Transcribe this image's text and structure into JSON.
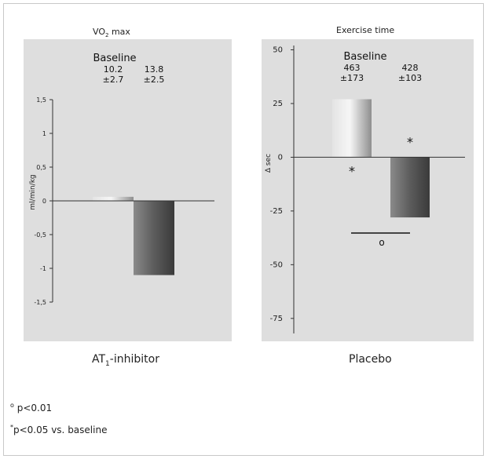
{
  "charts": [
    {
      "type": "bar",
      "title": "VO",
      "title_sub": "2",
      "title_tail": " max",
      "ylabel": "ml/min/kg",
      "ylim": [
        -1.5,
        1.5
      ],
      "yticks": [
        "1,5",
        "1",
        "0,5",
        "0",
        "-0,5",
        "-1",
        "-1,5"
      ],
      "ytick_values": [
        1.5,
        1,
        0.5,
        0,
        -0.5,
        -1,
        -1.5
      ],
      "baseline_label": "Baseline",
      "baseline_values": [
        {
          "mean": "10.2",
          "sd": "±2.7"
        },
        {
          "mean": "13.8",
          "sd": "±2.5"
        }
      ],
      "series": [
        {
          "group": "AT1-inhibitor",
          "value": 0.06
        },
        {
          "group": "Placebo",
          "value": -1.1
        }
      ],
      "grid": false
    },
    {
      "type": "bar",
      "title": "Exercise time",
      "ylabel": "Δ sec",
      "ylim": [
        -82,
        52
      ],
      "yticks": [
        "50",
        "25",
        "0",
        "-25",
        "-50",
        "-75"
      ],
      "ytick_values": [
        50,
        25,
        0,
        -25,
        -50,
        -75
      ],
      "baseline_label": "Baseline",
      "baseline_values": [
        {
          "mean": "463",
          "sd": "±173"
        },
        {
          "mean": "428",
          "sd": "±103"
        }
      ],
      "series": [
        {
          "group": "AT1-inhibitor",
          "value": 27
        },
        {
          "group": "Placebo",
          "value": -28
        }
      ],
      "asterisk": "*",
      "significance_mark": "o",
      "grid": false
    }
  ],
  "group_labels": {
    "left_main": "AT",
    "left_sub": "1",
    "left_tail": "-inhibitor",
    "right": "Placebo"
  },
  "footnotes": {
    "f1_mark": "o",
    "f1_text": " p<0.01",
    "f2_mark": "*",
    "f2_text": "p<0.05 vs. baseline"
  },
  "colors": {
    "panel_bg": "#dcdcdc",
    "bar_light": "#c0c0c0",
    "bar_dark": "#5e5e5e"
  }
}
